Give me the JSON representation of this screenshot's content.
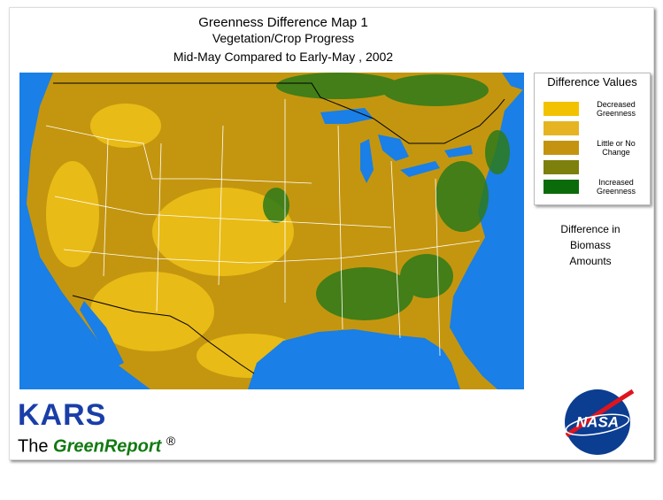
{
  "header": {
    "title": "Greenness Difference Map 1",
    "subtitle": "Vegetation/Crop Progress",
    "period": "Mid-May Compared to Early-May , 2002"
  },
  "legend": {
    "title": "Difference Values",
    "items": [
      {
        "color": "#f2c200",
        "label": "Decreased Greenness"
      },
      {
        "color": "#e6b422"
      },
      {
        "color": "#c49410",
        "label": "Little or No Change"
      },
      {
        "color": "#7d800c"
      },
      {
        "color": "#0b6b0b",
        "label": "Increased Greenness"
      }
    ]
  },
  "note": "Difference in Biomass Amounts",
  "branding": {
    "org": "KARS",
    "prefix": "The",
    "product": "GreenReport",
    "mark": "®",
    "logo": "NASA"
  }
}
